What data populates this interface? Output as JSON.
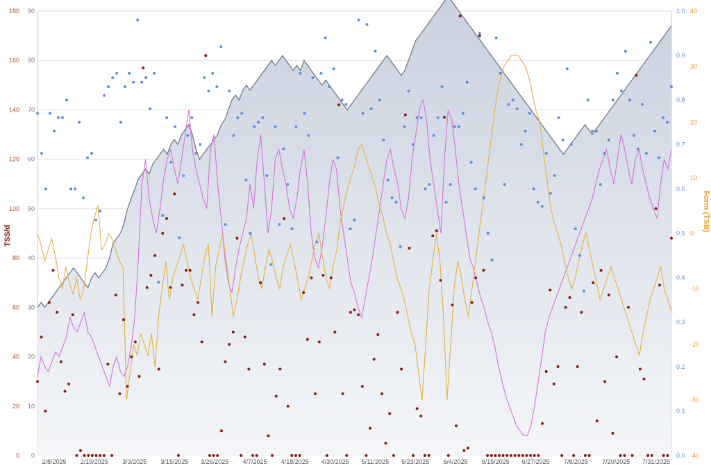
{
  "chart_data": {
    "type": "line",
    "ylabel": "TSS/d",
    "y2label": "Form (TSB)",
    "y_left_outer": {
      "range": [
        0,
        180
      ],
      "ticks": [
        0,
        20,
        40,
        60,
        80,
        100,
        120,
        140,
        160,
        180
      ],
      "color": "#a0522d"
    },
    "y_left_inner": {
      "range": [
        0,
        90
      ],
      "ticks": [
        0,
        10,
        20,
        30,
        40,
        50,
        60,
        70,
        80,
        90
      ],
      "color": "#777777"
    },
    "y_right_inner": {
      "range": [
        0,
        1
      ],
      "ticks": [
        "0.0",
        "0.1",
        "0.2",
        "0.3",
        "0.4",
        "0.5",
        "0.6",
        "0.7",
        "0.8",
        "0.9",
        "1.0"
      ],
      "color": "#5b8fd8"
    },
    "y_right_outer": {
      "range": [
        -40,
        40
      ],
      "ticks": [
        -40,
        -30,
        -20,
        -10,
        0,
        10,
        20,
        30,
        40
      ],
      "color": "#e0a030"
    },
    "x_ticks": [
      "2/8/2025",
      "2/19/2025",
      "3/3/2025",
      "3/15/2025",
      "3/26/2025",
      "4/7/2025",
      "4/18/2025",
      "4/30/2025",
      "5/11/2025",
      "5/23/2025",
      "6/4/2025",
      "6/15/2025",
      "6/27/2025",
      "7/8/2025",
      "7/20/2025",
      "7/31/2025"
    ],
    "grid": true,
    "colors": {
      "fitness_area": "#c9d1de",
      "fitness_line": "#6a7a8e",
      "fatigue": "#d86fd8",
      "form": "#e6b040",
      "tss": "#8b1c0c",
      "intensity": "#5b8fd8"
    },
    "series": [
      {
        "axis": "inner_left",
        "style": "area",
        "values": [
          30,
          31,
          30,
          31,
          32,
          33,
          34,
          35,
          36,
          37,
          38,
          37,
          36,
          35,
          34,
          36,
          37,
          36,
          37,
          38,
          40,
          43,
          44,
          45,
          47,
          50,
          52,
          54,
          56,
          57,
          58,
          57,
          59,
          60,
          61,
          62,
          61,
          63,
          64,
          63,
          65,
          66,
          67,
          65,
          62,
          60,
          61,
          62,
          63,
          64,
          65,
          67,
          68,
          70,
          72,
          73,
          72,
          74,
          75,
          74,
          75,
          76,
          77,
          78,
          79,
          80,
          79,
          80,
          81,
          80,
          79,
          78,
          79,
          78,
          80,
          79,
          78,
          77,
          76,
          75,
          76,
          75,
          74,
          73,
          72,
          71,
          70,
          71,
          72,
          73,
          74,
          75,
          76,
          77,
          78,
          79,
          80,
          81,
          80,
          79,
          78,
          77,
          78,
          80,
          82,
          84,
          85,
          86,
          87,
          88,
          89,
          90,
          91,
          92,
          93,
          92,
          91,
          90,
          89,
          88,
          87,
          86,
          85,
          84,
          83,
          82,
          81,
          80,
          79,
          78,
          77,
          76,
          75,
          74,
          73,
          72,
          71,
          70,
          69,
          68,
          67,
          66,
          65,
          64,
          63,
          62,
          61,
          62,
          63,
          64,
          65,
          66,
          67,
          66,
          65,
          66,
          67,
          68,
          69,
          70,
          71,
          72,
          73,
          74,
          75,
          76,
          77,
          78,
          79,
          80,
          81,
          82,
          83,
          84,
          85,
          86,
          87
        ]
      },
      {
        "axis": "inner_left",
        "style": "line",
        "values": [
          16,
          20,
          18,
          17,
          19,
          21,
          20,
          22,
          24,
          28,
          26,
          25,
          27,
          29,
          25,
          24,
          22,
          20,
          18,
          16,
          14,
          18,
          20,
          17,
          16,
          18,
          22,
          28,
          40,
          55,
          60,
          52,
          48,
          45,
          50,
          56,
          60,
          62,
          58,
          55,
          60,
          65,
          70,
          62,
          58,
          55,
          52,
          50,
          62,
          65,
          55,
          48,
          40,
          35,
          33,
          38,
          42,
          45,
          48,
          55,
          50,
          60,
          65,
          55,
          45,
          50,
          60,
          62,
          58,
          55,
          50,
          48,
          52,
          58,
          62,
          55,
          45,
          40,
          38,
          42,
          48,
          55,
          60,
          58,
          50,
          45,
          40,
          35,
          33,
          30,
          28,
          32,
          36,
          40,
          45,
          50,
          55,
          60,
          62,
          58,
          55,
          50,
          48,
          52,
          60,
          65,
          70,
          72,
          68,
          60,
          55,
          50,
          45,
          60,
          70,
          68,
          62,
          55,
          50,
          45,
          40,
          38,
          35,
          32,
          30,
          27,
          25,
          22,
          18,
          15,
          12,
          10,
          8,
          6,
          5,
          4,
          4,
          6,
          10,
          15,
          20,
          25,
          28,
          30,
          32,
          34,
          36,
          38,
          40,
          42,
          44,
          46,
          48,
          50,
          52,
          55,
          58,
          60,
          62,
          58,
          55,
          60,
          65,
          62,
          58,
          55,
          60,
          62,
          58,
          55,
          52,
          50,
          48,
          55,
          60,
          58,
          62
        ]
      },
      {
        "axis": "outer_right",
        "style": "line",
        "values": [
          0,
          -2,
          -5,
          -3,
          -1,
          -4,
          -8,
          -10,
          -6,
          -9,
          -11,
          -8,
          -12,
          -10,
          -5,
          0,
          3,
          5,
          -3,
          -2,
          0,
          -1,
          -3,
          -5,
          -6,
          -30,
          -25,
          -20,
          -22,
          -18,
          -20,
          -22,
          -18,
          -24,
          -15,
          -10,
          -5,
          -12,
          -8,
          -6,
          -4,
          -2,
          -5,
          -8,
          -10,
          -12,
          -8,
          -4,
          -2,
          -15,
          -6,
          -3,
          0,
          -5,
          -10,
          -15,
          -12,
          -8,
          -5,
          -2,
          0,
          -4,
          -8,
          -10,
          -6,
          -3,
          -5,
          -8,
          -10,
          -6,
          -4,
          -2,
          -5,
          -8,
          -12,
          -10,
          -8,
          -5,
          -2,
          0,
          -4,
          -8,
          -10,
          -6,
          -3,
          2,
          5,
          8,
          10,
          12,
          15,
          16,
          14,
          12,
          10,
          8,
          5,
          3,
          0,
          -2,
          -5,
          -8,
          -10,
          -12,
          -15,
          -18,
          -20,
          -25,
          -30,
          -20,
          -10,
          -5,
          0,
          -5,
          -15,
          -30,
          -20,
          -10,
          -5,
          -8,
          -12,
          -15,
          -10,
          -5,
          0,
          5,
          10,
          15,
          20,
          25,
          28,
          30,
          31,
          32,
          32,
          32,
          31,
          30,
          28,
          25,
          22,
          20,
          15,
          10,
          5,
          2,
          0,
          -2,
          -5,
          -8,
          -10,
          -8,
          -5,
          -2,
          0,
          -3,
          -6,
          -9,
          -12,
          -10,
          -8,
          -6,
          -8,
          -10,
          -12,
          -14,
          -16,
          -18,
          -20,
          -22,
          -18,
          -15,
          -12,
          -10,
          -8,
          -6,
          -10,
          -12,
          -14
        ]
      },
      {
        "axis": "outer_left",
        "style": "scatter",
        "values": [
          30,
          48,
          18,
          62,
          75,
          58,
          38,
          26,
          29,
          57,
          0,
          2,
          0,
          0,
          0,
          0,
          0,
          0,
          37,
          0,
          65,
          25,
          55,
          28,
          40,
          46,
          32,
          157,
          68,
          73,
          81,
          35,
          90,
          96,
          68,
          106,
          0,
          69,
          75,
          75,
          57,
          62,
          46,
          162,
          0,
          0,
          0,
          10,
          38,
          45,
          50,
          88,
          0,
          48,
          35,
          0,
          0,
          70,
          37,
          8,
          0,
          24,
          35,
          96,
          20,
          0,
          0,
          0,
          66,
          47,
          72,
          25,
          46,
          73,
          0,
          72,
          50,
          142,
          25,
          0,
          58,
          59,
          57,
          28,
          0,
          11,
          39,
          49,
          25,
          5,
          17,
          0,
          58,
          35,
          138,
          84,
          0,
          19,
          16,
          0,
          0,
          89,
          91,
          71,
          137,
          0,
          61,
          12,
          178,
          2,
          3,
          62,
          72,
          170,
          75,
          0,
          0,
          0,
          0,
          0,
          0,
          0,
          0,
          0,
          0,
          0,
          0,
          0,
          0,
          13,
          34,
          67,
          29,
          36,
          0,
          60,
          64,
          0,
          36,
          58,
          0,
          0,
          70,
          14,
          75,
          30,
          65,
          9,
          40,
          0,
          0,
          60,
          0,
          154,
          35,
          31,
          0,
          0,
          100,
          69,
          0,
          0,
          88
        ]
      },
      {
        "axis": "inner_right",
        "style": "scatter",
        "values": [
          0.77,
          0.68,
          0.6,
          0.77,
          0.73,
          0.76,
          0.76,
          0.8,
          0.6,
          0.6,
          0.75,
          0.58,
          0.67,
          0.68,
          0.53,
          0.55,
          0.81,
          0.83,
          0.85,
          0.86,
          0.75,
          0.83,
          0.86,
          0.84,
          0.98,
          0.84,
          0.85,
          0.78,
          0.86,
          0.39,
          0.54,
          0.76,
          0.66,
          0.74,
          0.49,
          0.63,
          0.72,
          0.76,
          0.68,
          0.7,
          0.85,
          0.82,
          0.86,
          0.83,
          0.92,
          0.52,
          0.82,
          0.72,
          0.76,
          0.77,
          0.62,
          0.5,
          0.74,
          0.75,
          0.76,
          0.63,
          0.43,
          0.74,
          0.52,
          0.69,
          0.61,
          0.51,
          0.74,
          0.86,
          0.77,
          0.72,
          0.85,
          0.48,
          0.86,
          0.94,
          0.83,
          0.87,
          0.67,
          0.8,
          0.79,
          0.51,
          0.53,
          0.98,
          0.77,
          0.97,
          0.78,
          0.91,
          0.8,
          0.71,
          0.62,
          0.58,
          0.57,
          0.47,
          0.74,
          0.82,
          0.7,
          0.76,
          0.76,
          0.6,
          0.61,
          0.72,
          0.76,
          0.83,
          0.57,
          0.61,
          0.74,
          0.74,
          0.77,
          0.84,
          0.66,
          0.6,
          0.95,
          0.58,
          0.5,
          0.44,
          0.94,
          0.86,
          0.61,
          0.79,
          0.8,
          0.78,
          0.7,
          0.73,
          0.77,
          0.6,
          0.57,
          0.56,
          0.68,
          0.59,
          0.63,
          0.76,
          0.71,
          0.87,
          0.7,
          0.51,
          0.45,
          0.37,
          0.8,
          0.73,
          0.73,
          0.61,
          0.68,
          0.71,
          0.8,
          0.86,
          0.82,
          0.91,
          0.8,
          0.72,
          0.69,
          0.79,
          0.68,
          0.93,
          0.73,
          0.67,
          0.76,
          0.75,
          0.83
        ]
      }
    ]
  }
}
